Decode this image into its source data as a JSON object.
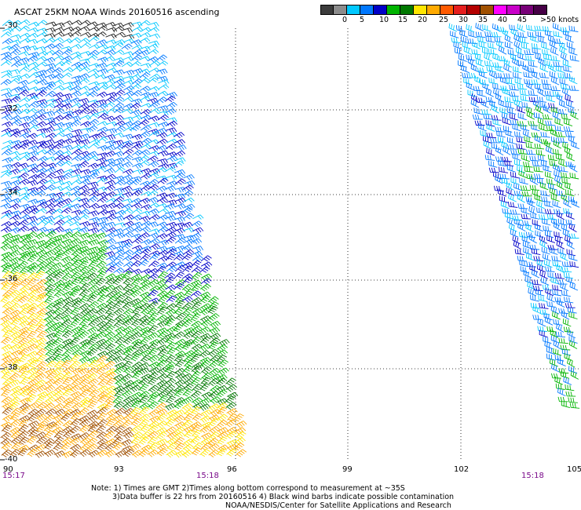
{
  "title": "ASCAT 25KM NOAA Winds 20160516 ascending",
  "legend": {
    "colors": [
      "#3c3c3c",
      "#8c8c8c",
      "#00c8ff",
      "#0078ff",
      "#0000c8",
      "#00b400",
      "#007800",
      "#ffe600",
      "#ffaa00",
      "#ff5a00",
      "#e61e1e",
      "#b40000",
      "#a05000",
      "#ff00ff",
      "#c800c8",
      "#780078",
      "#460046"
    ],
    "labels": [
      "0",
      "5",
      "10",
      "15",
      "20",
      "25",
      "30",
      "35",
      "40",
      "45",
      ">50 knots"
    ]
  },
  "map": {
    "lon_ticks": [
      "90",
      "93",
      "96",
      "99",
      "102",
      "105"
    ],
    "lat_ticks": [
      "-30",
      "-32",
      "-34",
      "-36",
      "-38",
      "-40"
    ],
    "grid": true
  },
  "times": {
    "left": "15:17",
    "middle": "15:18",
    "right": "15:18"
  },
  "notes": {
    "line1": "Note: 1) Times are GMT 2)Times along bottom correspond to measurement at ~35S",
    "line2": "3)Data buffer is 22 hrs from 20160516 4) Black wind barbs indicate possible contamination",
    "line3": "NOAA/NESDIS/Center for Satellite Applications and Research"
  }
}
